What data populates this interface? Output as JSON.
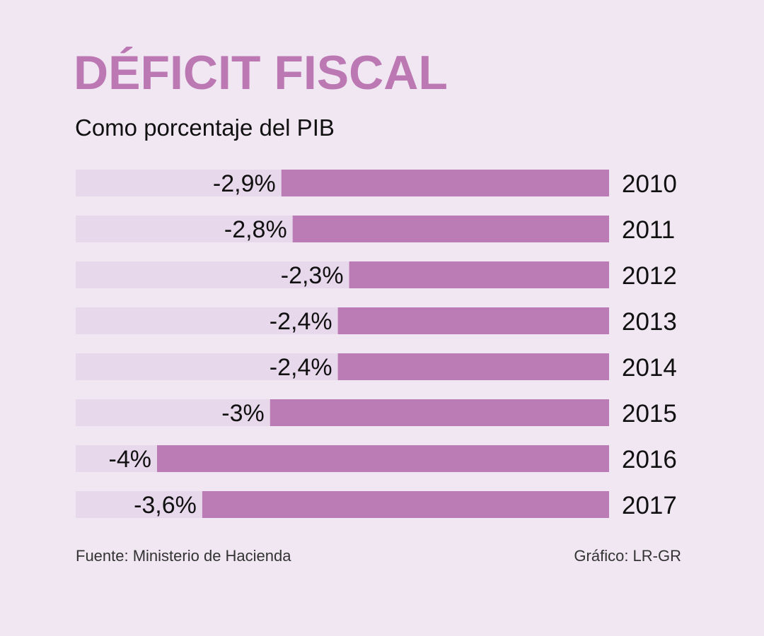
{
  "chart_data": {
    "type": "bar",
    "orientation": "horizontal",
    "title": "DÉFICIT FISCAL",
    "subtitle": "Como porcentaje del PIB",
    "categories": [
      "2010",
      "2011",
      "2012",
      "2013",
      "2014",
      "2015",
      "2016",
      "2017"
    ],
    "values": [
      -2.9,
      -2.8,
      -2.3,
      -2.4,
      -2.4,
      -3,
      -4,
      -3.6
    ],
    "data_labels": [
      "-2,9%",
      "-2,8%",
      "-2,3%",
      "-2,4%",
      "-2,4%",
      "-3%",
      "-4%",
      "-3,6%"
    ],
    "xlim": [
      0,
      -4.72
    ],
    "grid": false
  },
  "footer": {
    "source": "Fuente: Ministerio de Hacienda",
    "credit": "Gráfico: LR-GR"
  },
  "colors": {
    "background": "#f1e7f3",
    "bar": "#bb7bb4",
    "track": "#e8d8ec",
    "title": "#bb78b3"
  }
}
